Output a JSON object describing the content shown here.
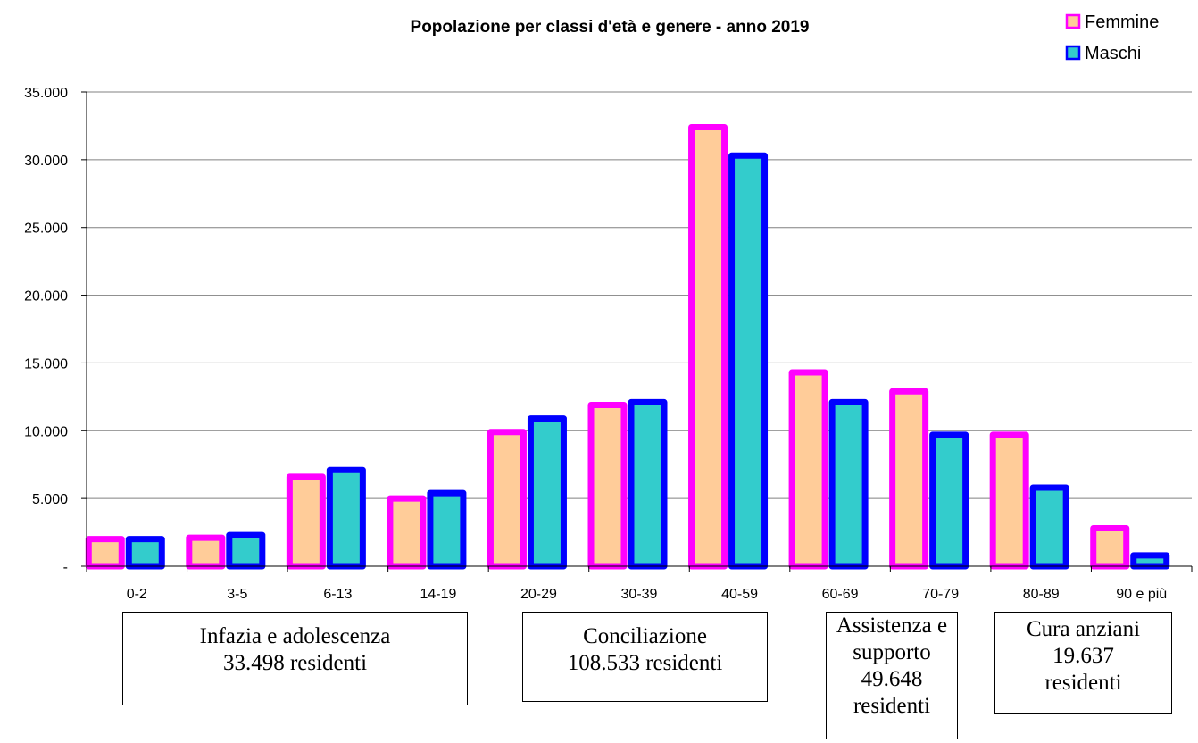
{
  "chart_data": {
    "type": "bar",
    "title": "Popolazione per classi d'età e genere - anno 2019",
    "categories": [
      "0-2",
      "3-5",
      "6-13",
      "14-19",
      "20-29",
      "30-39",
      "40-59",
      "60-69",
      "70-79",
      "80-89",
      "90 e più"
    ],
    "series": [
      {
        "name": "Femmine",
        "values": [
          2000,
          2100,
          6600,
          5000,
          9900,
          11900,
          32400,
          14300,
          12900,
          9700,
          2800
        ],
        "fill": "#ffcc99",
        "stroke": "#ff00ff"
      },
      {
        "name": "Maschi",
        "values": [
          2000,
          2300,
          7100,
          5400,
          10900,
          12100,
          30300,
          12100,
          9700,
          5800,
          800
        ],
        "fill": "#33cccc",
        "stroke": "#0000ff"
      }
    ],
    "ylim": [
      0,
      35000
    ],
    "y_ticks": [
      {
        "value": 0,
        "label": "-"
      },
      {
        "value": 5000,
        "label": "5.000"
      },
      {
        "value": 10000,
        "label": "10.000"
      },
      {
        "value": 15000,
        "label": "15.000"
      },
      {
        "value": 20000,
        "label": "20.000"
      },
      {
        "value": 25000,
        "label": "25.000"
      },
      {
        "value": 30000,
        "label": "30.000"
      },
      {
        "value": 35000,
        "label": "35.000"
      }
    ],
    "grid": true,
    "legend": "top-right",
    "annotations": [
      {
        "lines": [
          "Infazia e adolescenza",
          "33.498 residenti"
        ]
      },
      {
        "lines": [
          "Conciliazione",
          "108.533 residenti"
        ]
      },
      {
        "lines": [
          "Assistenza e",
          "supporto",
          "49.648",
          "residenti"
        ]
      },
      {
        "lines": [
          "Cura anziani",
          "19.637",
          "residenti"
        ]
      }
    ]
  }
}
